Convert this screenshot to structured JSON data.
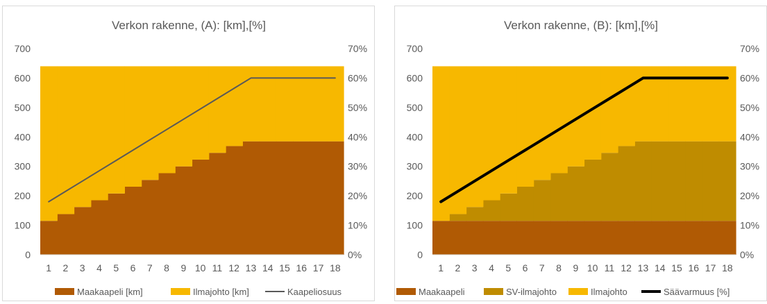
{
  "chart_data": [
    {
      "type": "area",
      "title": "Verkon rakenne, (A): [km],[%]",
      "categories": [
        1,
        2,
        3,
        4,
        5,
        6,
        7,
        8,
        9,
        10,
        11,
        12,
        13,
        14,
        15,
        16,
        17,
        18
      ],
      "ylim": [
        0,
        700
      ],
      "y2lim": [
        0,
        0.7
      ],
      "yticks": [
        "0",
        "100",
        "200",
        "300",
        "400",
        "500",
        "600",
        "700"
      ],
      "y2ticks": [
        "0%",
        "10%",
        "20%",
        "30%",
        "40%",
        "50%",
        "60%",
        "70%"
      ],
      "grid": false,
      "legend_position": "bottom",
      "series": [
        {
          "name": "Maakaapeli [km]",
          "kind": "area-step",
          "axis": "primary",
          "color": "#b05a04",
          "values": [
            115,
            138,
            162,
            185,
            208,
            231,
            254,
            277,
            300,
            323,
            346,
            369,
            385,
            385,
            385,
            385,
            385,
            385
          ]
        },
        {
          "name": "Ilmajohto [km]",
          "kind": "area-step",
          "axis": "primary",
          "color": "#f7b800",
          "values": [
            525,
            502,
            478,
            455,
            432,
            409,
            386,
            363,
            340,
            317,
            294,
            271,
            255,
            255,
            255,
            255,
            255,
            255
          ]
        },
        {
          "name": "Kaapeliosuus",
          "kind": "line",
          "axis": "secondary",
          "color": "#595959",
          "width": 2,
          "values": [
            0.18,
            0.215,
            0.25,
            0.285,
            0.32,
            0.355,
            0.39,
            0.425,
            0.46,
            0.495,
            0.53,
            0.565,
            0.6,
            0.6,
            0.6,
            0.6,
            0.6,
            0.6
          ]
        }
      ]
    },
    {
      "type": "area",
      "title": "Verkon rakenne, (B): [km],[%]",
      "categories": [
        1,
        2,
        3,
        4,
        5,
        6,
        7,
        8,
        9,
        10,
        11,
        12,
        13,
        14,
        15,
        16,
        17,
        18
      ],
      "ylim": [
        0,
        700
      ],
      "y2lim": [
        0,
        0.7
      ],
      "yticks": [
        "0",
        "100",
        "200",
        "300",
        "400",
        "500",
        "600",
        "700"
      ],
      "y2ticks": [
        "0%",
        "10%",
        "20%",
        "30%",
        "40%",
        "50%",
        "60%",
        "70%"
      ],
      "grid": false,
      "legend_position": "bottom",
      "series": [
        {
          "name": "Maakaapeli",
          "kind": "area-step",
          "axis": "primary",
          "color": "#b05a04",
          "values": [
            115,
            115,
            115,
            115,
            115,
            115,
            115,
            115,
            115,
            115,
            115,
            115,
            115,
            115,
            115,
            115,
            115,
            115
          ]
        },
        {
          "name": "SV-ilmajohto",
          "kind": "area-step",
          "axis": "primary",
          "color": "#bf8c00",
          "values": [
            0,
            23,
            47,
            70,
            93,
            116,
            139,
            162,
            185,
            208,
            231,
            254,
            270,
            270,
            270,
            270,
            270,
            270
          ]
        },
        {
          "name": "Ilmajohto",
          "kind": "area-step",
          "axis": "primary",
          "color": "#f7b800",
          "values": [
            525,
            502,
            478,
            455,
            432,
            409,
            386,
            363,
            340,
            317,
            294,
            271,
            255,
            255,
            255,
            255,
            255,
            255
          ]
        },
        {
          "name": "Säävarmuus [%]",
          "kind": "line",
          "axis": "secondary",
          "color": "#000000",
          "width": 4,
          "values": [
            0.18,
            0.215,
            0.25,
            0.285,
            0.32,
            0.355,
            0.39,
            0.425,
            0.46,
            0.495,
            0.53,
            0.565,
            0.6,
            0.6,
            0.6,
            0.6,
            0.6,
            0.6
          ]
        }
      ]
    }
  ]
}
